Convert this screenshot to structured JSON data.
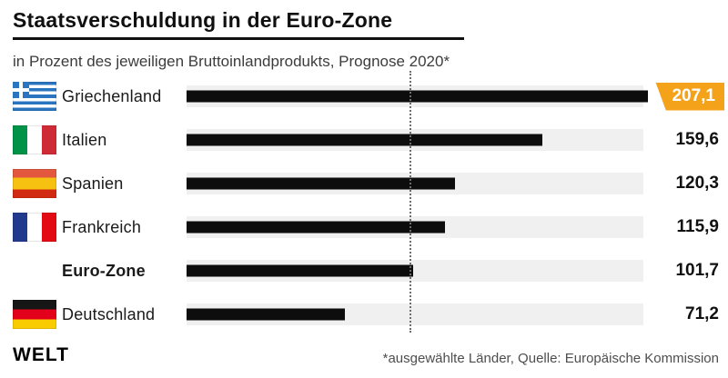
{
  "header": {
    "title": "Staatsverschuldung in der Euro-Zone",
    "subtitle": "in Prozent des jeweiligen Bruttoinlandprodukts, Prognose 2020*"
  },
  "chart_data": {
    "type": "bar",
    "orientation": "horizontal",
    "title": "Staatsverschuldung in der Euro-Zone",
    "subtitle": "in Prozent des jeweiligen Bruttoinlandprodukts, Prognose 2020*",
    "unit": "Prozent des BIP",
    "scale_max": 205,
    "reference_line": 100,
    "grid": false,
    "categories": [
      "Griechenland",
      "Italien",
      "Spanien",
      "Frankreich",
      "Euro-Zone",
      "Deutschland"
    ],
    "values": [
      207.1,
      159.6,
      120.3,
      115.9,
      101.7,
      71.2
    ],
    "rows": [
      {
        "label": "Griechenland",
        "flag": "greece",
        "value": 207.1,
        "display": "207,1",
        "highlight": true,
        "bold": false
      },
      {
        "label": "Italien",
        "flag": "italy",
        "value": 159.6,
        "display": "159,6",
        "highlight": false,
        "bold": false
      },
      {
        "label": "Spanien",
        "flag": "spain",
        "value": 120.3,
        "display": "120,3",
        "highlight": false,
        "bold": false
      },
      {
        "label": "Frankreich",
        "flag": "france",
        "value": 115.9,
        "display": "115,9",
        "highlight": false,
        "bold": false
      },
      {
        "label": "Euro-Zone",
        "flag": null,
        "value": 101.7,
        "display": "101,7",
        "highlight": false,
        "bold": true
      },
      {
        "label": "Deutschland",
        "flag": "germany",
        "value": 71.2,
        "display": "71,2",
        "highlight": false,
        "bold": false
      }
    ]
  },
  "footer": {
    "brand": "WELT",
    "note": "*ausgewählte Länder, Quelle: Europäische Kommission"
  },
  "colors": {
    "bar": "#0d0d0d",
    "track": "#f0f0f0",
    "accent_badge": "#f5a21b",
    "reference_line": "#6e6e6e",
    "title_rule": "#101010"
  }
}
